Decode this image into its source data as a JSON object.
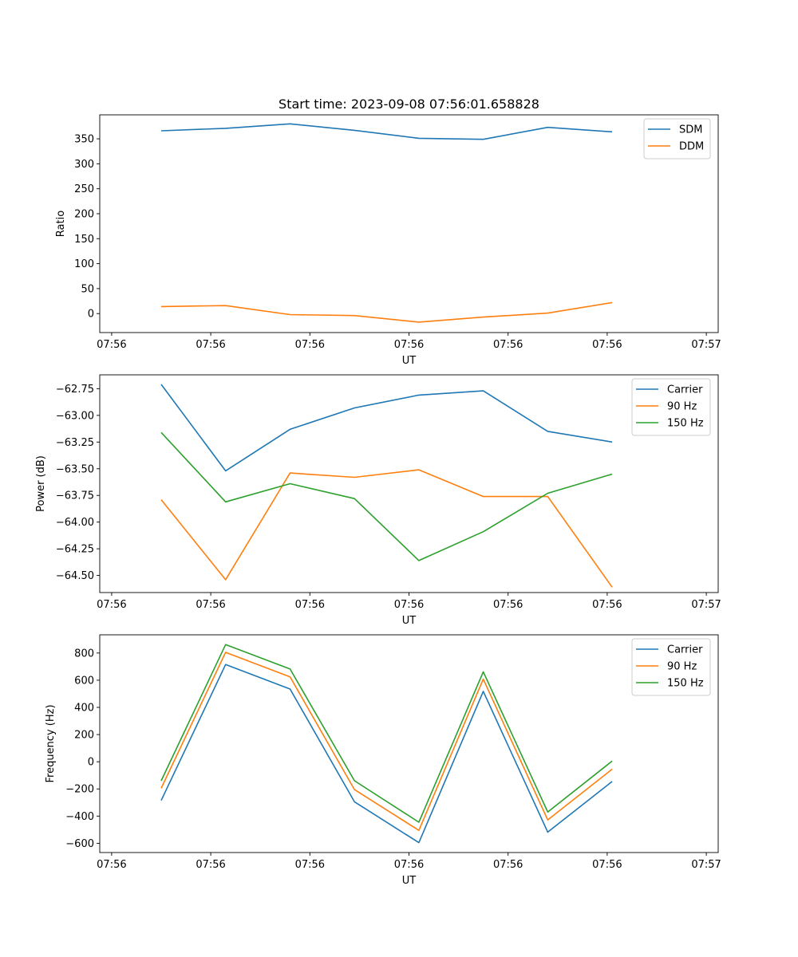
{
  "title": "Start time: 2023-09-08 07:56:01.658828",
  "chart_data": [
    {
      "type": "line",
      "title": "Start time: 2023-09-08 07:56:01.658828",
      "xlabel": "UT",
      "ylabel": "Ratio",
      "x_ticklabels": [
        "07:56",
        "07:56",
        "07:56",
        "07:56",
        "07:56",
        "07:56",
        "07:57"
      ],
      "xlim": [
        -0.12,
        6.12
      ],
      "x": [
        0.5,
        1.15,
        1.8,
        2.45,
        3.1,
        3.75,
        4.4,
        5.05
      ],
      "ylim": [
        -38,
        398
      ],
      "yticks": [
        0,
        50,
        100,
        150,
        200,
        250,
        300,
        350
      ],
      "legend_position": "top-right",
      "series": [
        {
          "name": "SDM",
          "color": "#1f77b4",
          "values": [
            366,
            371,
            380,
            367,
            351,
            349,
            373,
            364
          ]
        },
        {
          "name": "DDM",
          "color": "#ff7f0e",
          "values": [
            14,
            16,
            -2,
            -4,
            -17,
            -7,
            1,
            22
          ]
        }
      ]
    },
    {
      "type": "line",
      "title": "",
      "xlabel": "UT",
      "ylabel": "Power (dB)",
      "x_ticklabels": [
        "07:56",
        "07:56",
        "07:56",
        "07:56",
        "07:56",
        "07:56",
        "07:57"
      ],
      "xlim": [
        -0.12,
        6.12
      ],
      "x": [
        0.5,
        1.15,
        1.8,
        2.45,
        3.1,
        3.75,
        4.4,
        5.05
      ],
      "ylim": [
        -64.66,
        -62.62
      ],
      "yticks": [
        -64.5,
        -64.25,
        -64.0,
        -63.75,
        -63.5,
        -63.25,
        -63.0,
        -62.75
      ],
      "ytick_labels": [
        "−64.50",
        "−64.25",
        "−64.00",
        "−63.75",
        "−63.50",
        "−63.25",
        "−63.00",
        "−62.75"
      ],
      "legend_position": "top-right",
      "series": [
        {
          "name": "Carrier",
          "color": "#1f77b4",
          "values": [
            -62.71,
            -63.52,
            -63.13,
            -62.93,
            -62.81,
            -62.77,
            -63.15,
            -63.25
          ]
        },
        {
          "name": "90 Hz",
          "color": "#ff7f0e",
          "values": [
            -63.79,
            -64.54,
            -63.54,
            -63.58,
            -63.51,
            -63.76,
            -63.76,
            -64.61
          ]
        },
        {
          "name": "150 Hz",
          "color": "#2ca02c",
          "values": [
            -63.16,
            -63.81,
            -63.64,
            -63.78,
            -64.36,
            -64.09,
            -63.73,
            -63.55
          ]
        }
      ]
    },
    {
      "type": "line",
      "title": "",
      "xlabel": "UT",
      "ylabel": "Frequency (Hz)",
      "x_ticklabels": [
        "07:56",
        "07:56",
        "07:56",
        "07:56",
        "07:56",
        "07:56",
        "07:57"
      ],
      "xlim": [
        -0.12,
        6.12
      ],
      "x": [
        0.5,
        1.15,
        1.8,
        2.45,
        3.1,
        3.75,
        4.4,
        5.05
      ],
      "ylim": [
        -668,
        934
      ],
      "yticks": [
        -600,
        -400,
        -200,
        0,
        200,
        400,
        600,
        800
      ],
      "ytick_labels": [
        "−600",
        "−400",
        "−200",
        "0",
        "200",
        "400",
        "600",
        "800"
      ],
      "legend_position": "top-right",
      "series": [
        {
          "name": "Carrier",
          "color": "#1f77b4",
          "values": [
            -285,
            715,
            535,
            -295,
            -595,
            518,
            -518,
            -145
          ]
        },
        {
          "name": "90 Hz",
          "color": "#ff7f0e",
          "values": [
            -195,
            805,
            625,
            -205,
            -505,
            608,
            -428,
            -55
          ]
        },
        {
          "name": "150 Hz",
          "color": "#2ca02c",
          "values": [
            -140,
            862,
            682,
            -140,
            -445,
            662,
            -370,
            5
          ]
        }
      ]
    }
  ]
}
